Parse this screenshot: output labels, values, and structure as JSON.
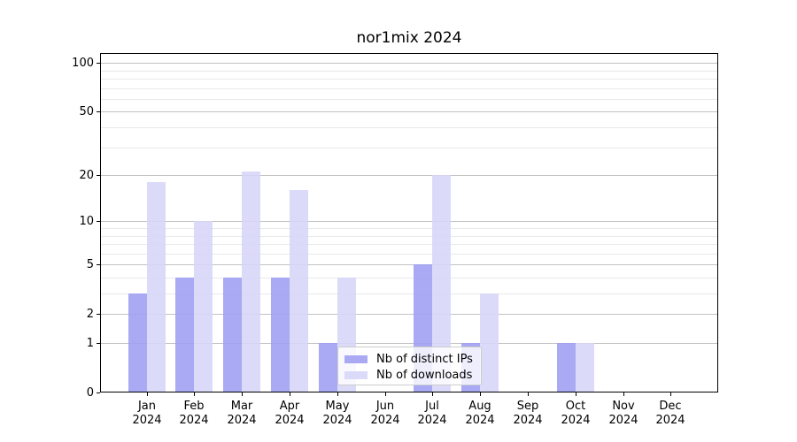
{
  "chart_data": {
    "type": "bar",
    "title": "nor1mix 2024",
    "categories": [
      "Jan",
      "Feb",
      "Mar",
      "Apr",
      "May",
      "Jun",
      "Jul",
      "Aug",
      "Sep",
      "Oct",
      "Nov",
      "Dec"
    ],
    "year_label": "2024",
    "series": [
      {
        "name": "Nb of distinct IPs",
        "color": "#9d9df3",
        "values": [
          3,
          4,
          4,
          4,
          1,
          0,
          5,
          1,
          0,
          1,
          0,
          0
        ]
      },
      {
        "name": "Nb of downloads",
        "color": "#d6d6f8",
        "values": [
          18,
          10,
          21,
          16,
          4,
          0,
          20,
          3,
          0,
          1,
          0,
          0
        ]
      }
    ],
    "y_axis": {
      "scale": "log1p",
      "major_ticks": [
        0,
        1,
        2,
        5,
        10,
        20,
        50,
        100
      ],
      "minor_ticks": [
        3,
        4,
        6,
        7,
        8,
        9,
        30,
        40,
        60,
        70,
        80,
        90
      ],
      "ylim": [
        0,
        115
      ]
    },
    "x_axis": {
      "tick_label_format": "month over year, two lines"
    },
    "legend": {
      "position": "lower center-left inside plot"
    },
    "grid": {
      "major_color": "#c2c2c2",
      "minor_color": "#e9e9e9"
    },
    "colors": {
      "background": "#ffffff",
      "spine": "#000000",
      "text": "#000000"
    }
  }
}
